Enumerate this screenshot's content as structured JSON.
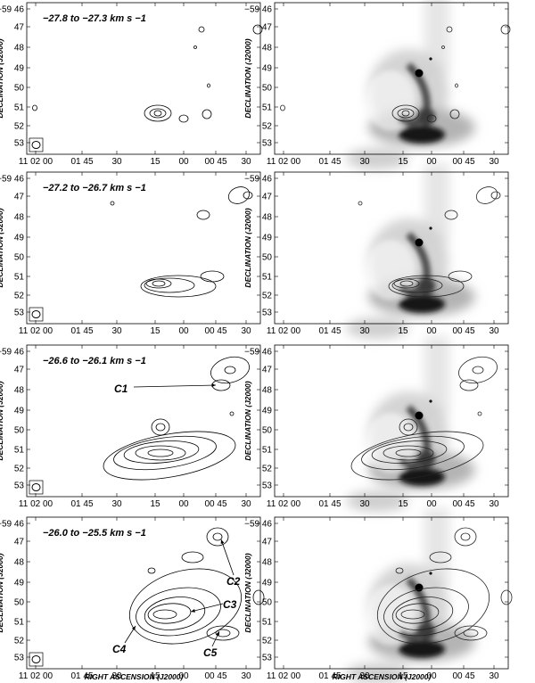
{
  "axes": {
    "ylabel": "DECLINATION (J2000)",
    "xlabel": "RIGHT ASCENSION (J2000)",
    "dec_ticks": [
      "−59 46",
      "47",
      "48",
      "49",
      "50",
      "51",
      "52",
      "53"
    ],
    "ra_ticks": [
      "11 02 00",
      "01 45",
      "30",
      "15",
      "00",
      "00 45",
      "30"
    ]
  },
  "panels": [
    {
      "velocity_label": "−27.8  to  −27.3  km s −1"
    },
    {
      "velocity_label": "−27.2  to  −26.7  km s −1"
    },
    {
      "velocity_label": "−26.6  to  −26.1  km s −1"
    },
    {
      "velocity_label": "−26.0  to  −25.5  km s −1"
    }
  ],
  "clump_labels": [
    "C1",
    "C2",
    "C3",
    "C4",
    "C5"
  ],
  "colors": {
    "contour": "#000000",
    "greyscale_dark": "#1a1a1a",
    "background": "#ffffff"
  }
}
